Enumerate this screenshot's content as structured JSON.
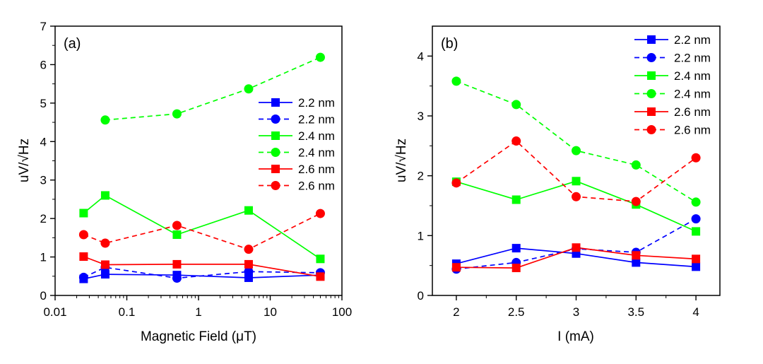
{
  "chart_data": [
    {
      "type": "line",
      "panel_label": "(a)",
      "xlabel": "Magnetic Field (μT)",
      "ylabel": "uV/√Hz",
      "xscale": "log",
      "xlim": [
        0.01,
        100
      ],
      "ylim": [
        0,
        7
      ],
      "xticks": [
        0.01,
        0.1,
        1,
        10,
        100
      ],
      "xtick_labels": [
        "0.01",
        "0.1",
        "1",
        "10",
        "100"
      ],
      "yticks": [
        0,
        1,
        2,
        3,
        4,
        5,
        6,
        7
      ],
      "ytick_labels": [
        "0",
        "1",
        "2",
        "3",
        "4",
        "5",
        "6",
        "7"
      ],
      "x": [
        0.025,
        0.05,
        0.5,
        5,
        50
      ],
      "legend_position": "right-middle",
      "grid": false,
      "series": [
        {
          "name": "2.2 nm",
          "color": "#0000ff",
          "dash": "solid",
          "marker": "square",
          "values": [
            0.43,
            0.55,
            0.53,
            0.46,
            0.53
          ]
        },
        {
          "name": "2.2 nm",
          "color": "#0000ff",
          "dash": "dashed",
          "marker": "circle",
          "values": [
            0.47,
            0.73,
            0.45,
            0.62,
            0.59
          ]
        },
        {
          "name": "2.4 nm",
          "color": "#00ff00",
          "dash": "solid",
          "marker": "square",
          "values": [
            2.14,
            2.6,
            1.58,
            2.21,
            0.95
          ]
        },
        {
          "name": "2.4 nm",
          "color": "#00ff00",
          "dash": "dashed",
          "marker": "circle",
          "values": [
            null,
            4.56,
            4.72,
            5.37,
            6.19
          ]
        },
        {
          "name": "2.6 nm",
          "color": "#ff0000",
          "dash": "solid",
          "marker": "square",
          "values": [
            1.01,
            0.8,
            0.81,
            0.81,
            0.49
          ]
        },
        {
          "name": "2.6 nm",
          "color": "#ff0000",
          "dash": "dashed",
          "marker": "circle",
          "values": [
            1.58,
            1.36,
            1.82,
            1.2,
            2.13
          ]
        }
      ]
    },
    {
      "type": "line",
      "panel_label": "(b)",
      "xlabel": "I (mA)",
      "ylabel": "uV/√Hz",
      "xscale": "linear",
      "xlim": [
        1.8,
        4.2
      ],
      "ylim": [
        0,
        4.5
      ],
      "xticks": [
        2,
        2.5,
        3,
        3.5,
        4
      ],
      "xtick_labels": [
        "2",
        "2.5",
        "3",
        "3.5",
        "4"
      ],
      "yticks": [
        0,
        1,
        2,
        3,
        4
      ],
      "ytick_labels": [
        "0",
        "1",
        "2",
        "3",
        "4"
      ],
      "x": [
        2,
        2.5,
        3,
        3.5,
        4
      ],
      "legend_position": "top-right",
      "grid": false,
      "series": [
        {
          "name": "2.2 nm",
          "color": "#0000ff",
          "dash": "solid",
          "marker": "square",
          "values": [
            0.53,
            0.79,
            0.7,
            0.55,
            0.48
          ]
        },
        {
          "name": "2.2 nm",
          "color": "#0000ff",
          "dash": "dashed",
          "marker": "circle",
          "values": [
            0.44,
            0.55,
            0.78,
            0.72,
            1.28
          ]
        },
        {
          "name": "2.4 nm",
          "color": "#00ff00",
          "dash": "solid",
          "marker": "square",
          "values": [
            1.9,
            1.6,
            1.91,
            1.52,
            1.07
          ]
        },
        {
          "name": "2.4 nm",
          "color": "#00ff00",
          "dash": "dashed",
          "marker": "circle",
          "values": [
            3.58,
            3.19,
            2.42,
            2.18,
            1.56
          ]
        },
        {
          "name": "2.6 nm",
          "color": "#ff0000",
          "dash": "solid",
          "marker": "square",
          "values": [
            0.47,
            0.46,
            0.8,
            0.67,
            0.61
          ]
        },
        {
          "name": "2.6 nm",
          "color": "#ff0000",
          "dash": "dashed",
          "marker": "circle",
          "values": [
            1.88,
            2.58,
            1.65,
            1.57,
            2.3
          ]
        }
      ]
    }
  ]
}
